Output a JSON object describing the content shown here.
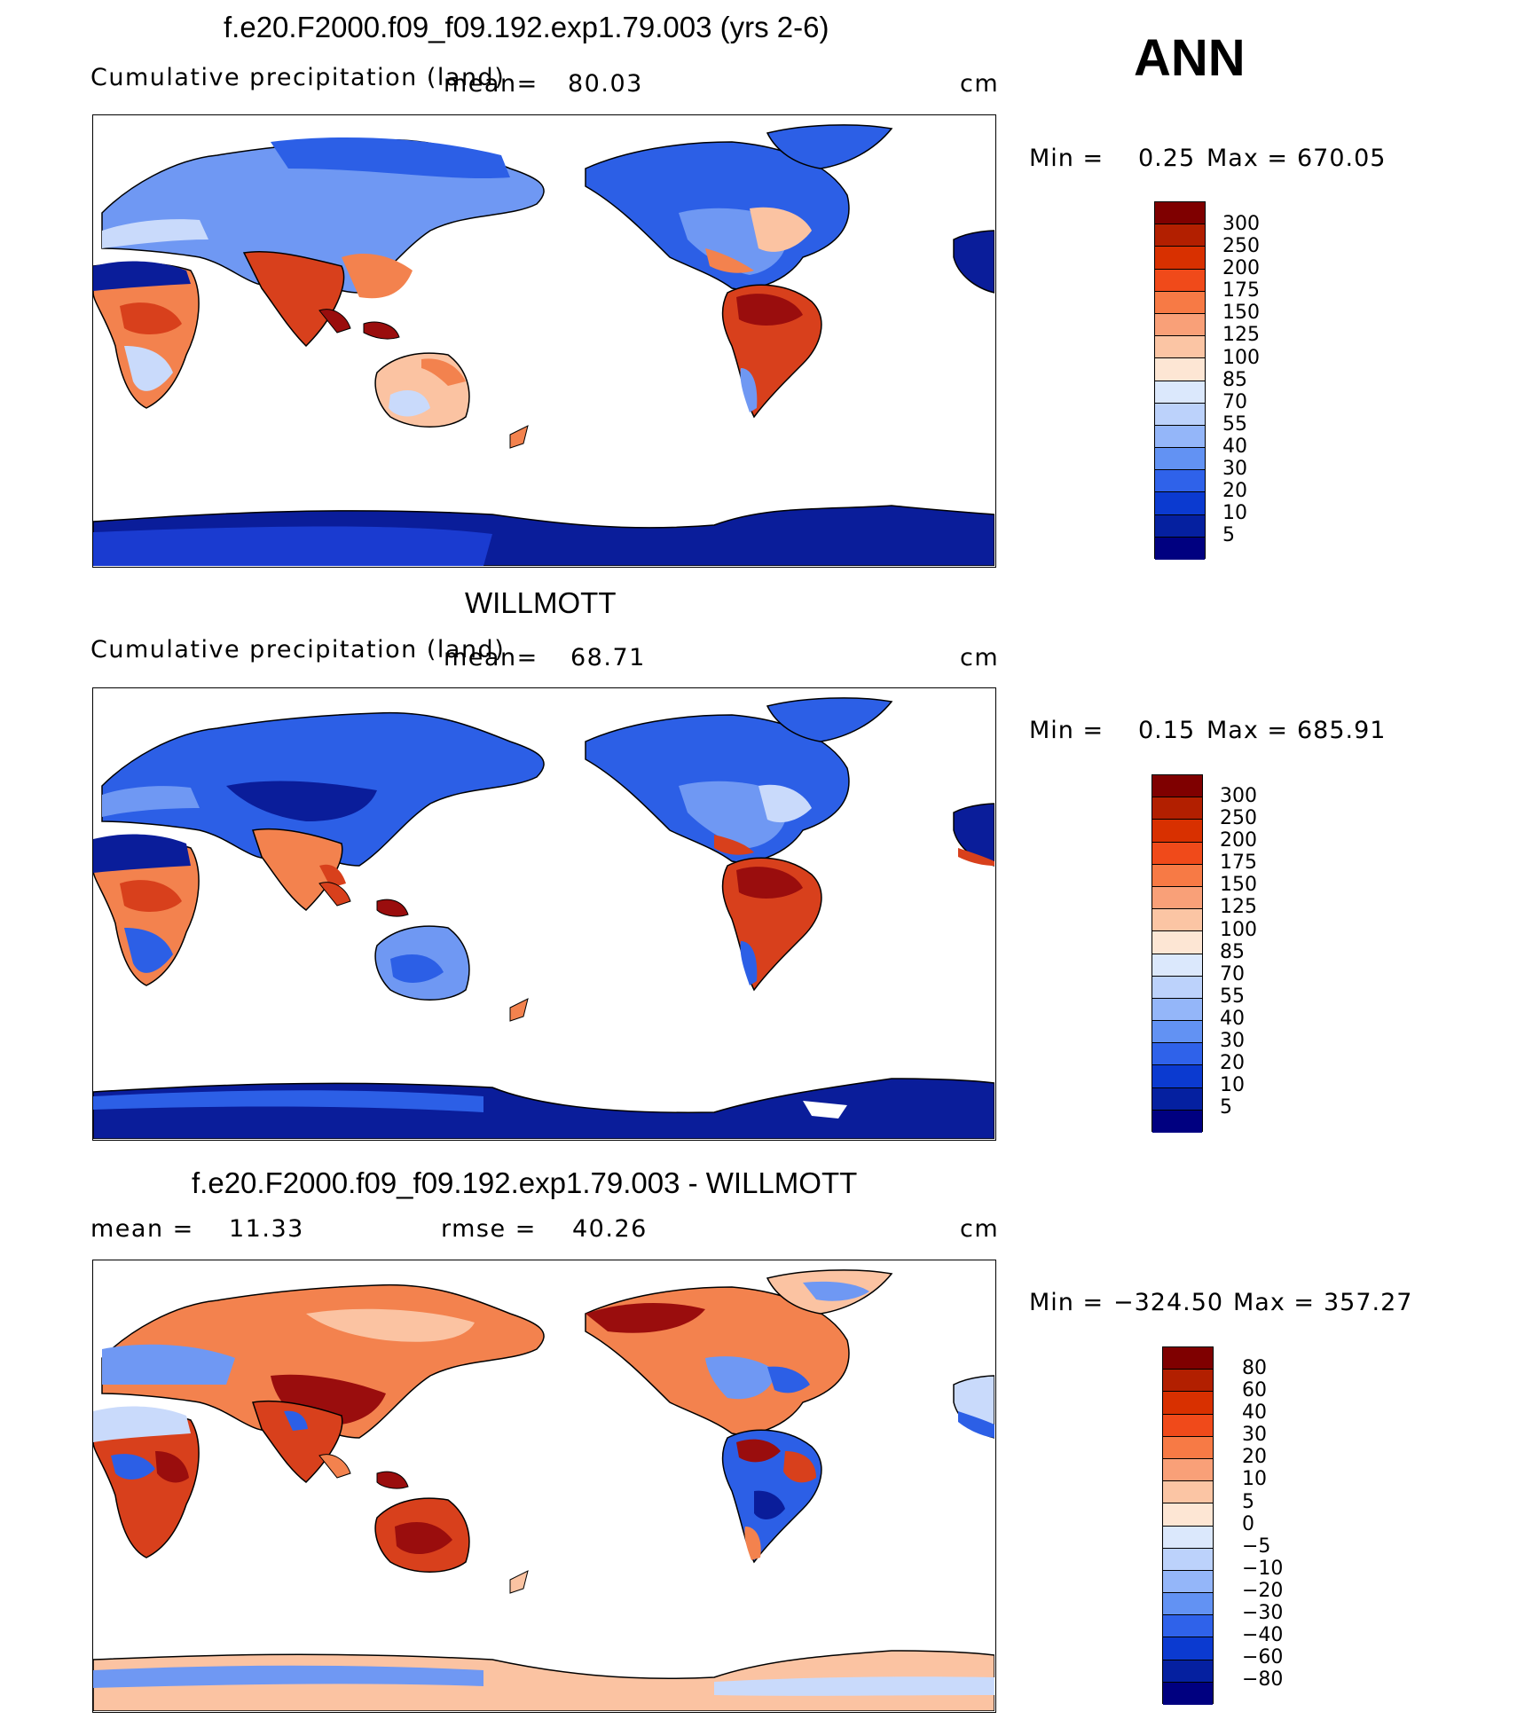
{
  "season": "ANN",
  "panels": [
    {
      "title": "f.e20.F2000.f09_f09.192.exp1.79.003 (yrs 2-6)",
      "variable_label": "Cumulative precipitation (land)",
      "mean_label": "mean=",
      "mean_value": "80.03",
      "units": "cm",
      "min_label": "Min =",
      "min_value": "0.25",
      "max_label": "Max =",
      "max_value": "670.05",
      "levels": [
        "300",
        "250",
        "200",
        "175",
        "150",
        "125",
        "100",
        "85",
        "70",
        "55",
        "40",
        "30",
        "20",
        "10",
        "5"
      ]
    },
    {
      "title": "WILLMOTT",
      "variable_label": "Cumulative precipitation (land)",
      "mean_label": "mean=",
      "mean_value": "68.71",
      "units": "cm",
      "min_label": "Min =",
      "min_value": "0.15",
      "max_label": "Max =",
      "max_value": "685.91",
      "levels": [
        "300",
        "250",
        "200",
        "175",
        "150",
        "125",
        "100",
        "85",
        "70",
        "55",
        "40",
        "30",
        "20",
        "10",
        "5"
      ]
    },
    {
      "title": "f.e20.F2000.f09_f09.192.exp1.79.003 - WILLMOTT",
      "mean_label": "mean =",
      "mean_value": "11.33",
      "rmse_label": "rmse =",
      "rmse_value": "40.26",
      "units": "cm",
      "min_label": "Min =",
      "min_value": "−324.50",
      "max_label": "Max =",
      "max_value": "357.27",
      "levels": [
        "80",
        "60",
        "40",
        "30",
        "20",
        "10",
        "5",
        "0",
        "−5",
        "−10",
        "−20",
        "−30",
        "−40",
        "−60",
        "−80"
      ]
    }
  ],
  "colorbar_colors": [
    "#7f0000",
    "#b21f00",
    "#d83000",
    "#f04a1a",
    "#f77a45",
    "#f9a078",
    "#fbc5a4",
    "#fde6d4",
    "#dbe8fc",
    "#bcd2fb",
    "#94b6f9",
    "#6292f3",
    "#2f62ea",
    "#0b3ad0",
    "#0520a0",
    "#000080"
  ],
  "map_colors": {
    "deep_red": "#9a0d0d",
    "red": "#d8401c",
    "orange": "#f3824e",
    "peach": "#fbc3a2",
    "light_blue": "#c9dafb",
    "mid_blue": "#6f98f3",
    "blue": "#2c5fe6",
    "navy": "#0a1d9a"
  }
}
